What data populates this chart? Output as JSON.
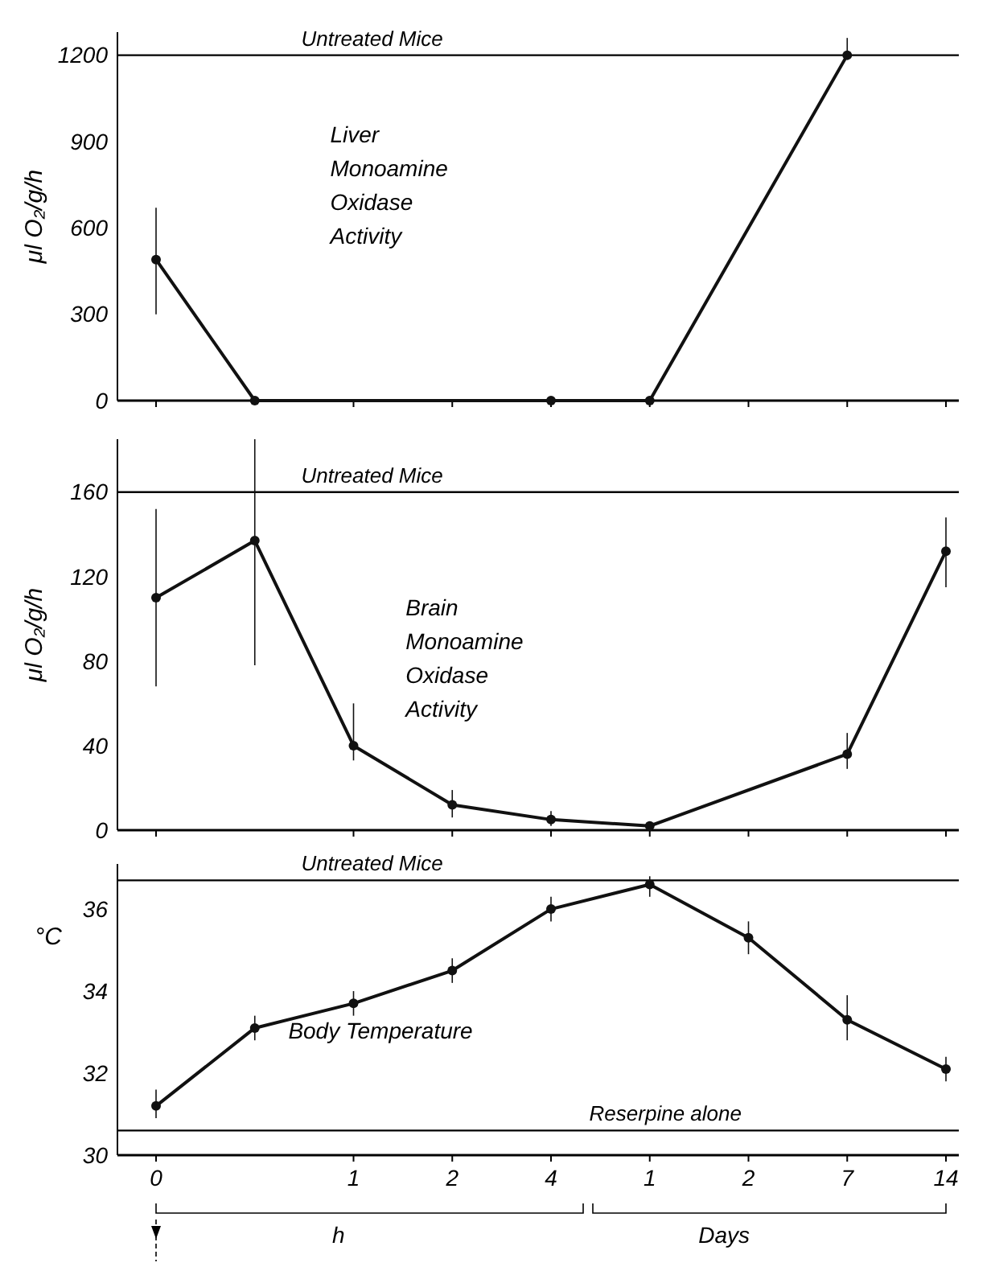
{
  "chart_data": [
    {
      "type": "line",
      "ylabel": "μl O₂/g/h",
      "marker": "circle",
      "categories": [
        "0",
        null,
        "1",
        "2",
        "4",
        "1",
        "2",
        "7",
        "14"
      ],
      "ylim": [
        0,
        1280
      ],
      "yticks": [
        0,
        300,
        600,
        900,
        1200
      ],
      "tick_labels": "y",
      "series": [
        {
          "color": "#111111",
          "values": [
            490,
            0,
            null,
            null,
            0,
            0,
            null,
            1200,
            null
          ],
          "errors": [
            [
              300,
              670
            ],
            null,
            null,
            null,
            null,
            null,
            null,
            [
              1200,
              1260
            ],
            null
          ]
        }
      ],
      "ref_lines": [
        {
          "axis": "y",
          "value": 1200,
          "label": "Untreated Mice"
        }
      ],
      "annotations": [
        "Liver\nMonoamine\nOxidase\nActivity"
      ]
    },
    {
      "type": "line",
      "ylabel": "μl O₂/g/h",
      "marker": "circle",
      "categories": [
        "0",
        null,
        "1",
        "2",
        "4",
        "1",
        "2",
        "7",
        "14"
      ],
      "ylim": [
        0,
        185
      ],
      "yticks": [
        0,
        40,
        80,
        120,
        160
      ],
      "tick_labels": "y",
      "series": [
        {
          "color": "#111111",
          "values": [
            110,
            137,
            40,
            12,
            5,
            2,
            null,
            36,
            132
          ],
          "errors": [
            [
              68,
              152
            ],
            [
              78,
              185
            ],
            [
              33,
              60
            ],
            [
              6,
              19
            ],
            [
              2,
              9
            ],
            null,
            null,
            [
              29,
              46
            ],
            [
              115,
              148
            ]
          ]
        }
      ],
      "ref_lines": [
        {
          "axis": "y",
          "value": 160,
          "label": "Untreated Mice"
        }
      ],
      "annotations": [
        "Brain\nMonoamine\nOxidase\nActivity"
      ]
    },
    {
      "type": "line",
      "ylabel": "°C",
      "marker": "circle",
      "categories": [
        "0",
        null,
        "1",
        "2",
        "4",
        "1",
        "2",
        "7",
        "14"
      ],
      "ylim": [
        30,
        37.1
      ],
      "yticks": [
        30,
        32,
        34,
        36
      ],
      "series": [
        {
          "color": "#111111",
          "values": [
            31.2,
            33.1,
            33.7,
            34.5,
            36,
            36.6,
            35.3,
            33.3,
            32.1
          ],
          "errors": [
            [
              30.9,
              31.6
            ],
            [
              32.8,
              33.4
            ],
            [
              33.4,
              34
            ],
            [
              34.2,
              34.8
            ],
            [
              35.7,
              36.3
            ],
            [
              36.3,
              36.8
            ],
            [
              34.9,
              35.7
            ],
            [
              32.8,
              33.9
            ],
            [
              31.8,
              32.4
            ]
          ]
        }
      ],
      "ref_lines": [
        {
          "axis": "y",
          "value": 36.7,
          "label": "Untreated Mice"
        },
        {
          "axis": "y",
          "value": 30.6,
          "label": "Reserpine alone"
        }
      ],
      "annotations": [
        "Body Temperature",
        "h",
        "Days"
      ]
    }
  ]
}
